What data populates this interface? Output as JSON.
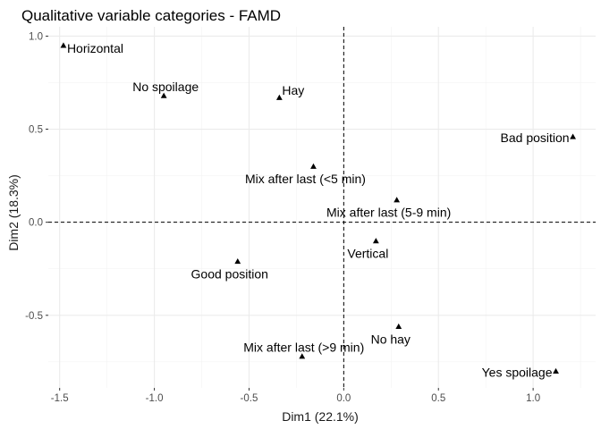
{
  "chart_data": {
    "type": "scatter",
    "title": "Qualitative variable categories - FAMD",
    "xlabel": "Dim1 (22.1%)",
    "ylabel": "Dim2 (18.3%)",
    "xlim": [
      -1.56,
      1.33
    ],
    "ylim": [
      -0.89,
      1.05
    ],
    "xticks": [
      -1.5,
      -1.0,
      -0.5,
      0.0,
      0.5,
      1.0
    ],
    "xtick_labels": [
      "-1.5",
      "-1.0",
      "-0.5",
      "0.0",
      "0.5",
      "1.0"
    ],
    "yticks": [
      -0.5,
      0.0,
      0.5,
      1.0
    ],
    "ytick_labels": [
      "-0.5",
      "0.0",
      "0.5",
      "1.0"
    ],
    "grid": true,
    "reference_lines": {
      "x": 0,
      "y": 0,
      "style": "dashed"
    },
    "marker": "triangle",
    "points": [
      {
        "label": "Horizontal",
        "x": -1.48,
        "y": 0.95,
        "label_pos": "right"
      },
      {
        "label": "No spoilage",
        "x": -0.95,
        "y": 0.68,
        "label_pos": "above"
      },
      {
        "label": "Hay",
        "x": -0.34,
        "y": 0.67,
        "label_pos": "above-right"
      },
      {
        "label": "Bad position",
        "x": 1.21,
        "y": 0.46,
        "label_pos": "left"
      },
      {
        "label": "Mix after last (<5 min)",
        "x": -0.16,
        "y": 0.3,
        "label_pos": "below"
      },
      {
        "label": "Mix after last (5-9 min)",
        "x": 0.28,
        "y": 0.12,
        "label_pos": "below"
      },
      {
        "label": "Vertical",
        "x": 0.17,
        "y": -0.1,
        "label_pos": "below"
      },
      {
        "label": "Good position",
        "x": -0.56,
        "y": -0.21,
        "label_pos": "below"
      },
      {
        "label": "No hay",
        "x": 0.29,
        "y": -0.56,
        "label_pos": "below"
      },
      {
        "label": "Mix after last (>9 min)",
        "x": -0.22,
        "y": -0.72,
        "label_pos": "above"
      },
      {
        "label": "Yes spoilage",
        "x": 1.12,
        "y": -0.8,
        "label_pos": "left"
      }
    ]
  }
}
